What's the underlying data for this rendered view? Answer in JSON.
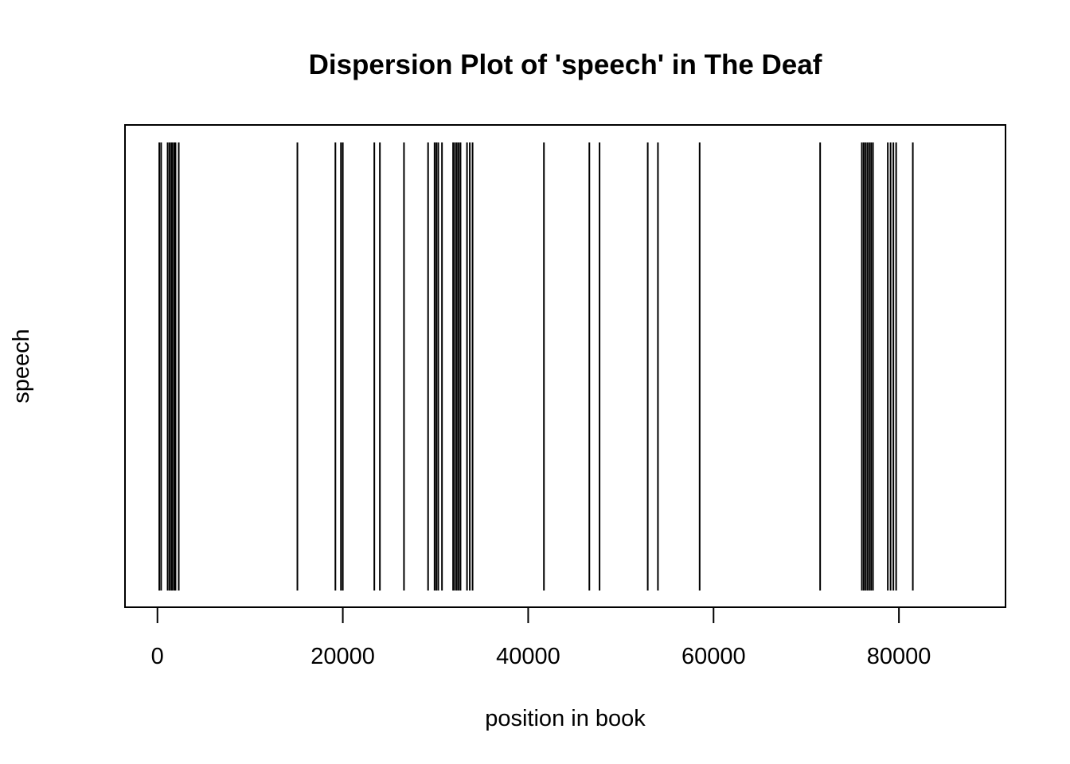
{
  "chart_data": {
    "type": "dispersion",
    "title": "Dispersion Plot of 'speech' in The Deaf",
    "xlabel": "position in book",
    "ylabel": "speech",
    "xlim": [
      -3500,
      91500
    ],
    "x_ticks": [
      0,
      20000,
      40000,
      60000,
      80000
    ],
    "x_tick_labels": [
      "0",
      "20000",
      "40000",
      "60000",
      "80000"
    ],
    "grid": false,
    "legend": "none",
    "line_color": "#000000",
    "series": [
      {
        "positions": [
          200,
          400,
          1100,
          1300,
          1500,
          1600,
          1800,
          1950,
          2300,
          15100,
          19200,
          19800,
          20000,
          23400,
          24000,
          26600,
          29200,
          29900,
          30100,
          30300,
          30700,
          31900,
          32100,
          32300,
          32500,
          32700,
          33400,
          33700,
          34000,
          41700,
          46600,
          47700,
          52900,
          54000,
          58500,
          71500,
          76000,
          76200,
          76400,
          76600,
          76800,
          77000,
          77200,
          78800,
          79100,
          79400,
          79700,
          81500
        ]
      }
    ]
  }
}
